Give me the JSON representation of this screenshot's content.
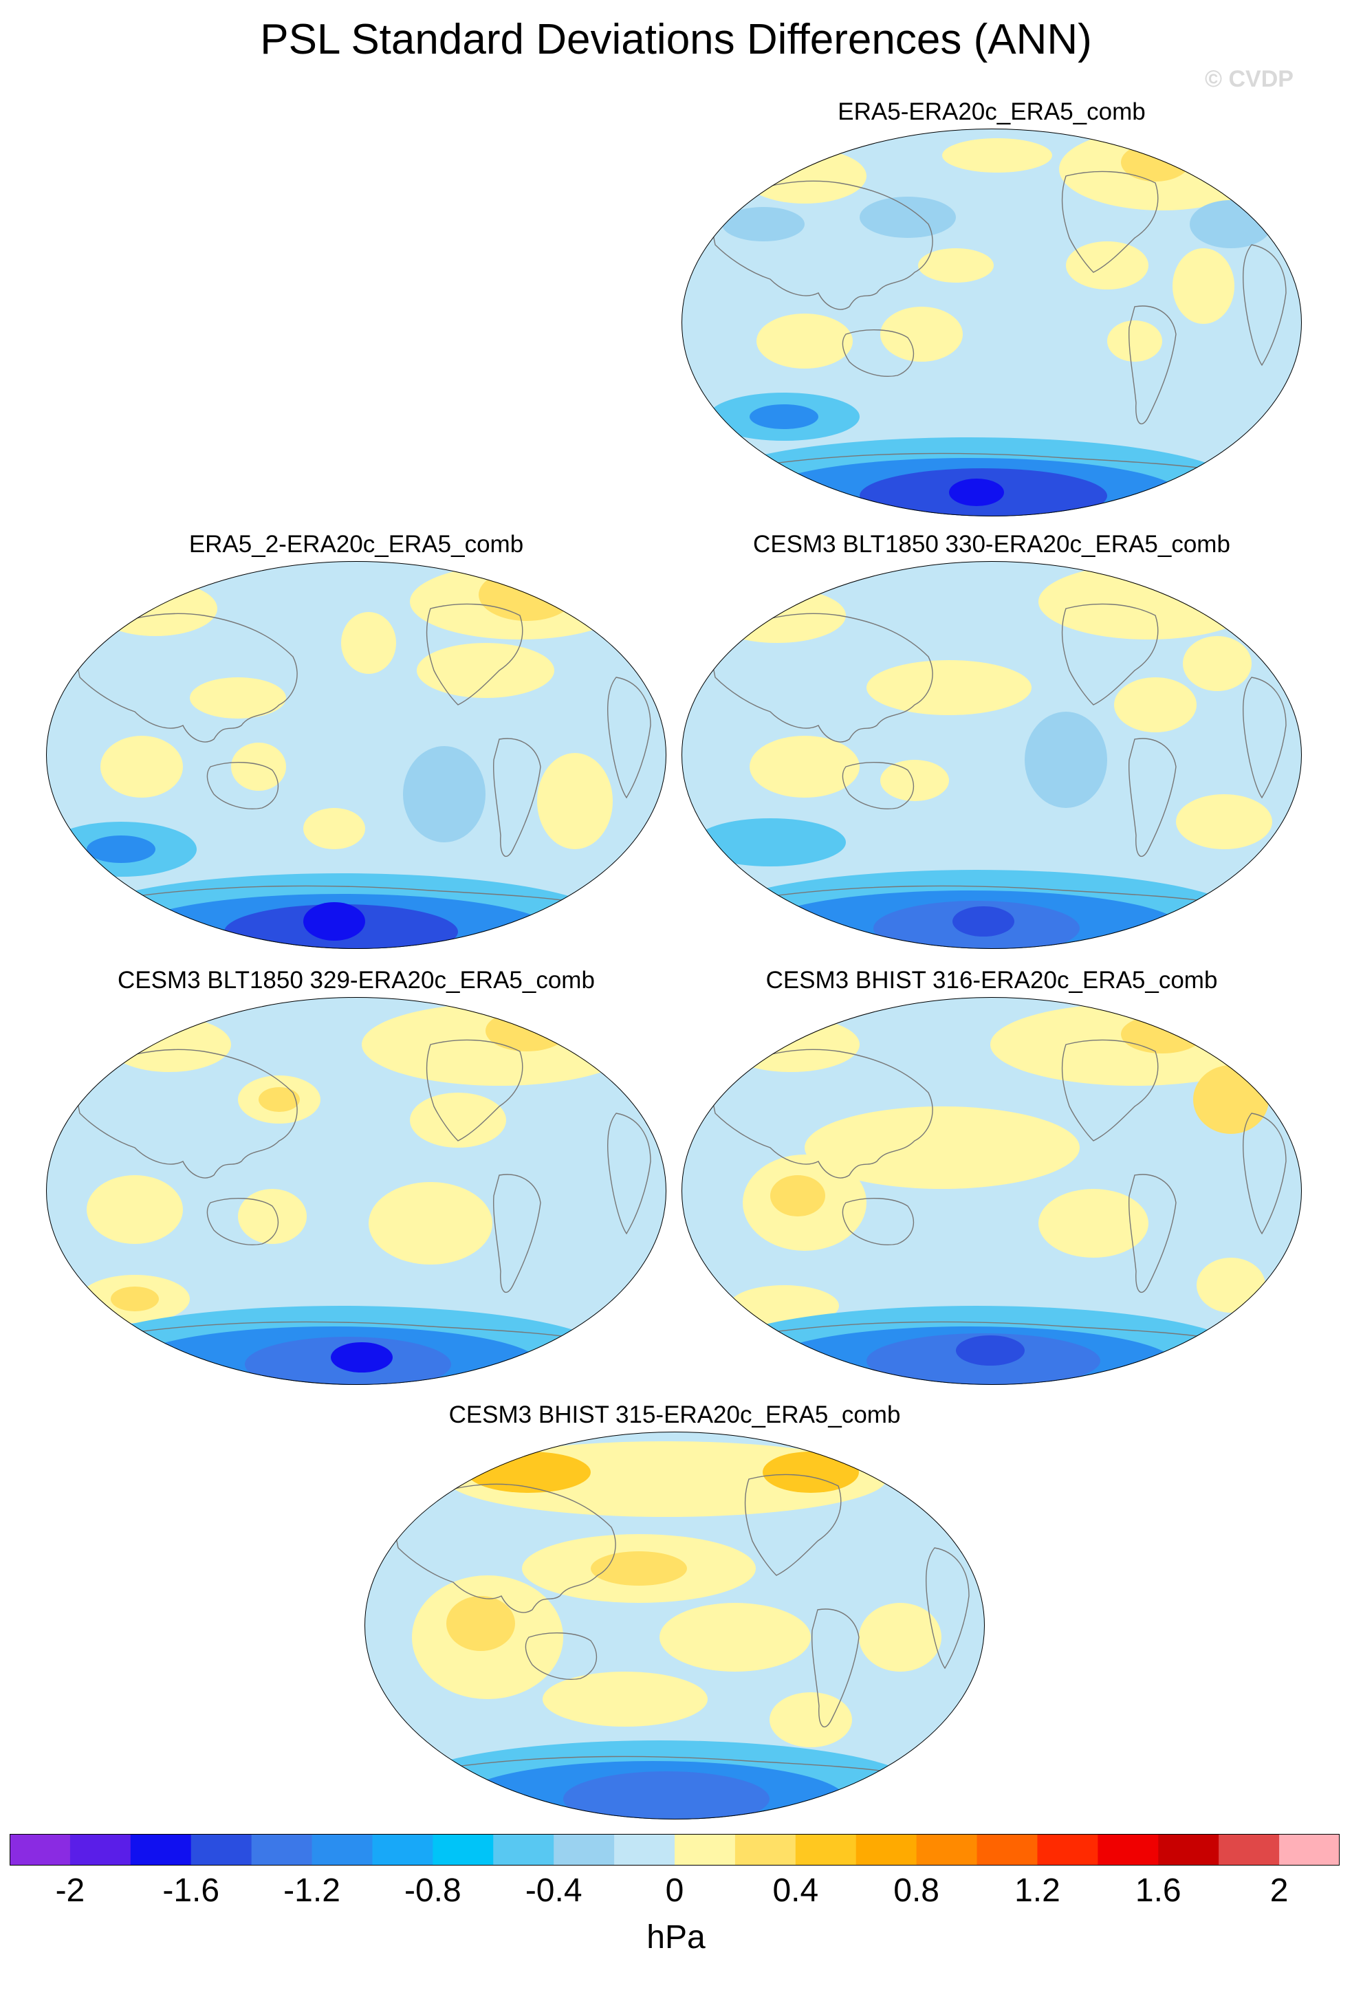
{
  "title": "PSL Standard Deviations Differences (ANN)",
  "watermark": "© CVDP",
  "panels": [
    {
      "title": "ERA5-ERA20c_ERA5_comb"
    },
    {
      "title": "ERA5_2-ERA20c_ERA5_comb"
    },
    {
      "title": "CESM3 BLT1850 330-ERA20c_ERA5_comb"
    },
    {
      "title": "CESM3 BLT1850 329-ERA20c_ERA5_comb"
    },
    {
      "title": "CESM3 BHIST 316-ERA20c_ERA5_comb"
    },
    {
      "title": "CESM3 BHIST 315-ERA20c_ERA5_comb"
    }
  ],
  "colorbar": {
    "units": "hPa",
    "tick_labels": [
      "-2",
      "-1.6",
      "-1.2",
      "-0.8",
      "-0.4",
      "0",
      "0.4",
      "0.8",
      "1.2",
      "1.6",
      "2"
    ],
    "colors": [
      "#8a2be2",
      "#5a1ee8",
      "#1010f0",
      "#2a4ee0",
      "#3c78e8",
      "#2a8ef0",
      "#18a8f8",
      "#00c4f8",
      "#58c8f2",
      "#9ad2f0",
      "#c2e6f6",
      "#fff7a6",
      "#ffe066",
      "#ffc820",
      "#ffaa00",
      "#ff8a00",
      "#ff6400",
      "#ff2a00",
      "#f00000",
      "#c80000",
      "#e04848",
      "#ffb0b8"
    ]
  }
}
